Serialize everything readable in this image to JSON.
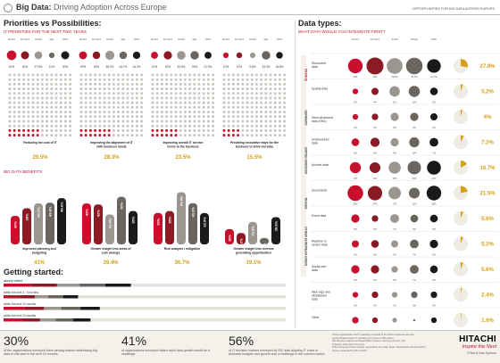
{
  "header": {
    "title_bold": "Big Data:",
    "title_rest": "Driving Adoption Across Europe",
    "right_text": "OPPORTUNITIES FOR BIG DATA ACROSS EUROPE"
  },
  "colors": {
    "accent_red": "#c8102e",
    "accent_gold": "#d4a017",
    "france": "#c8102e",
    "germany": "#8b1a24",
    "uk": "#9c9690",
    "italy": "#6b6560",
    "russia": "#bcb6ae",
    "other": "#1a1a1a"
  },
  "countries": [
    "France",
    "Germany",
    "United Kingdom",
    "Italy",
    "Russia",
    "Other European Union"
  ],
  "priorities": {
    "title": "Priorities vs Possibilities:",
    "subtitle": "IT PRIORITIES FOR THE NEXT TWO YEARS",
    "groups": [
      {
        "values": [
          "42%",
          "30%",
          "27.5%",
          "10%",
          "30%"
        ],
        "caption": "Reducing the cost of IT",
        "total": "29.5%"
      },
      {
        "values": [
          "29%",
          "26%",
          "38.2%",
          "26.7%",
          "24.3%"
        ],
        "caption": "Improving the alignment of IT with business needs",
        "total": "28.3%"
      },
      {
        "values": [
          "22%",
          "32%",
          "33.5%",
          "33%",
          "21.9%"
        ],
        "caption": "Improving overall IT service levels to the business",
        "total": "23.5%"
      },
      {
        "values": [
          "10%",
          "12%",
          "9.8%",
          "33.3%",
          "18.8%"
        ],
        "caption": "Providing innovative ways for the business to drive increase",
        "total": "15.5%"
      }
    ]
  },
  "benefits": {
    "title": "BIG DATA BENEFITS",
    "groups": [
      {
        "bars": [
          "30%",
          "38%",
          "43.1%",
          "43.8%",
          "48.6%"
        ],
        "caption": "Improved planning and budgeting",
        "total": "41%"
      },
      {
        "bars": [
          "43%",
          "42%",
          "31.4%",
          "50%",
          "35%"
        ],
        "caption": "Greater insight into areas of cost savings",
        "total": "39.4%"
      },
      {
        "bars": [
          "33%",
          "35%",
          "54.9%",
          "43.3%",
          "32.9%"
        ],
        "caption": "Risk analysis / mitigation",
        "total": "36.7%"
      },
      {
        "bars": [
          "16%",
          "12%",
          "23.5%",
          "6.7%",
          "28.6%"
        ],
        "caption": "Greater insight into revenue generating opportunities",
        "total": "19.1%"
      }
    ]
  },
  "getting_started": {
    "title": "Getting started:",
    "rows": [
      {
        "label": "already started",
        "fill": 0.41
      },
      {
        "label": "within the next 3 - 6 months",
        "fill": 0.24
      },
      {
        "label": "within the next 12 months",
        "fill": 0.31
      },
      {
        "label": "within the next 24 months",
        "fill": 0.28
      }
    ]
  },
  "stats": [
    {
      "value": "30%",
      "text": "of the organizations surveyed have already started addressing big data or will start in the next 24 months."
    },
    {
      "value": "41%",
      "text": "of organizations surveyed stated rapid data growth would be a challenge"
    },
    {
      "value": "56%",
      "text": "of IT decision makers surveyed by IDC said aligning IT costs to business budgets and growth was a challenge in the current market"
    }
  ],
  "footnotes": [
    "These organizations had IT spending in excess of 10 million and Revenues over",
    "(except Russia where IT spending is in excess of $5 million)",
    "IDC decision makers interviewed 550 in France, Germany and UK, with",
    "In Russia, with total of 5 survey",
    "Other European Union includes respondents from Italy, Spain, Netherlands and the Nordics",
    "Survey conducted by IDC in 2012"
  ],
  "brand": {
    "name": "HITACHI",
    "tagline": "Inspire the Next",
    "company": "©Hitachi Data Systems"
  },
  "data_types": {
    "title": "Data types:",
    "subtitle": "WHAT DATA WOULD YOU INTEGRATE FIRST?",
    "country_labels_vertical": [
      "FRANCE",
      "GERMANY",
      "UNITED KINGDOM",
      "RUSSIA",
      "OTHER EUROPEAN UNION"
    ],
    "rows": [
      {
        "label": "Structured data",
        "values": [
          "25%",
          "40%",
          "29.8%",
          "33.3%",
          "21.2%"
        ],
        "total": "27.9%",
        "total_frac": 0.279
      },
      {
        "label": "Spatial data",
        "values": [
          "2%",
          "4%",
          "11%",
          "13%",
          "5%"
        ],
        "total": "5.2%",
        "total_frac": 0.052
      },
      {
        "label": "Semi-structured data (XML)",
        "values": [
          "2%",
          "3%",
          "6%",
          "6%",
          "4%"
        ],
        "total": "4%",
        "total_frac": 0.04
      },
      {
        "label": "Unstructured data",
        "values": [
          "5%",
          "8%",
          "6%",
          "10%",
          "7%"
        ],
        "total": "7.2%",
        "total_frac": 0.072
      },
      {
        "label": "Archive data",
        "values": [
          "13%",
          "12%",
          "16%",
          "20%",
          "22%"
        ],
        "total": "16.7%",
        "total_frac": 0.167
      },
      {
        "label": "Documents",
        "values": [
          "29%",
          "24%",
          "17%",
          "12%",
          "25%"
        ],
        "total": "21.5%",
        "total_frac": 0.215
      },
      {
        "label": "Event data",
        "values": [
          "6%",
          "3%",
          "7%",
          "5%",
          "5%"
        ],
        "total": "5.6%",
        "total_frac": 0.056
      },
      {
        "label": "Machine or sensor data",
        "values": [
          "4%",
          "5%",
          "4%",
          "7%",
          "6%"
        ],
        "total": "5.2%",
        "total_frac": 0.052
      },
      {
        "label": "Social web data",
        "values": [
          "6%",
          "6%",
          "3%",
          "7%",
          "5%"
        ],
        "total": "5.6%",
        "total_frac": 0.056
      },
      {
        "label": "Web logs and clickstream data",
        "values": [
          "2%",
          "3%",
          "2%",
          "3%",
          "3%"
        ],
        "total": "2.4%",
        "total_frac": 0.024
      },
      {
        "label": "Other",
        "values": [
          "3%",
          "2%",
          "1%",
          "0%",
          "2%"
        ],
        "total": "1.6%",
        "total_frac": 0.016
      }
    ]
  }
}
